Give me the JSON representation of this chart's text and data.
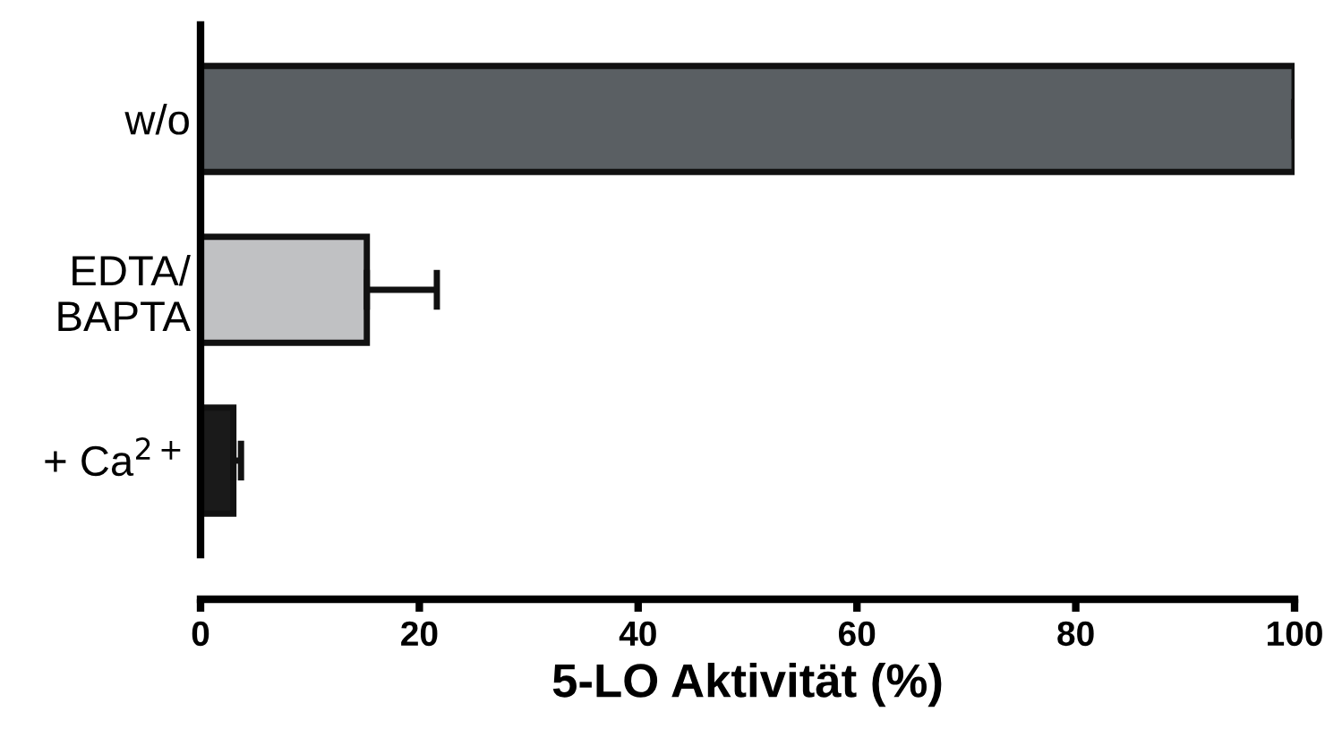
{
  "chart_data": {
    "type": "bar",
    "orientation": "horizontal",
    "xlabel": "5-LO Aktivität (%)",
    "categories": [
      "w/o",
      "EDTA/\nBAPTA",
      "+ Ca$^{2+}$"
    ],
    "values": [
      100,
      15.2,
      3
    ],
    "errors": [
      null,
      6.4,
      0.7
    ],
    "colors": [
      "#5a5f63",
      "#c0c1c3",
      "#1a1a1a"
    ],
    "xlim": [
      0,
      100
    ],
    "xticks": [
      0,
      20,
      40,
      60,
      80,
      100
    ],
    "grid": false
  }
}
